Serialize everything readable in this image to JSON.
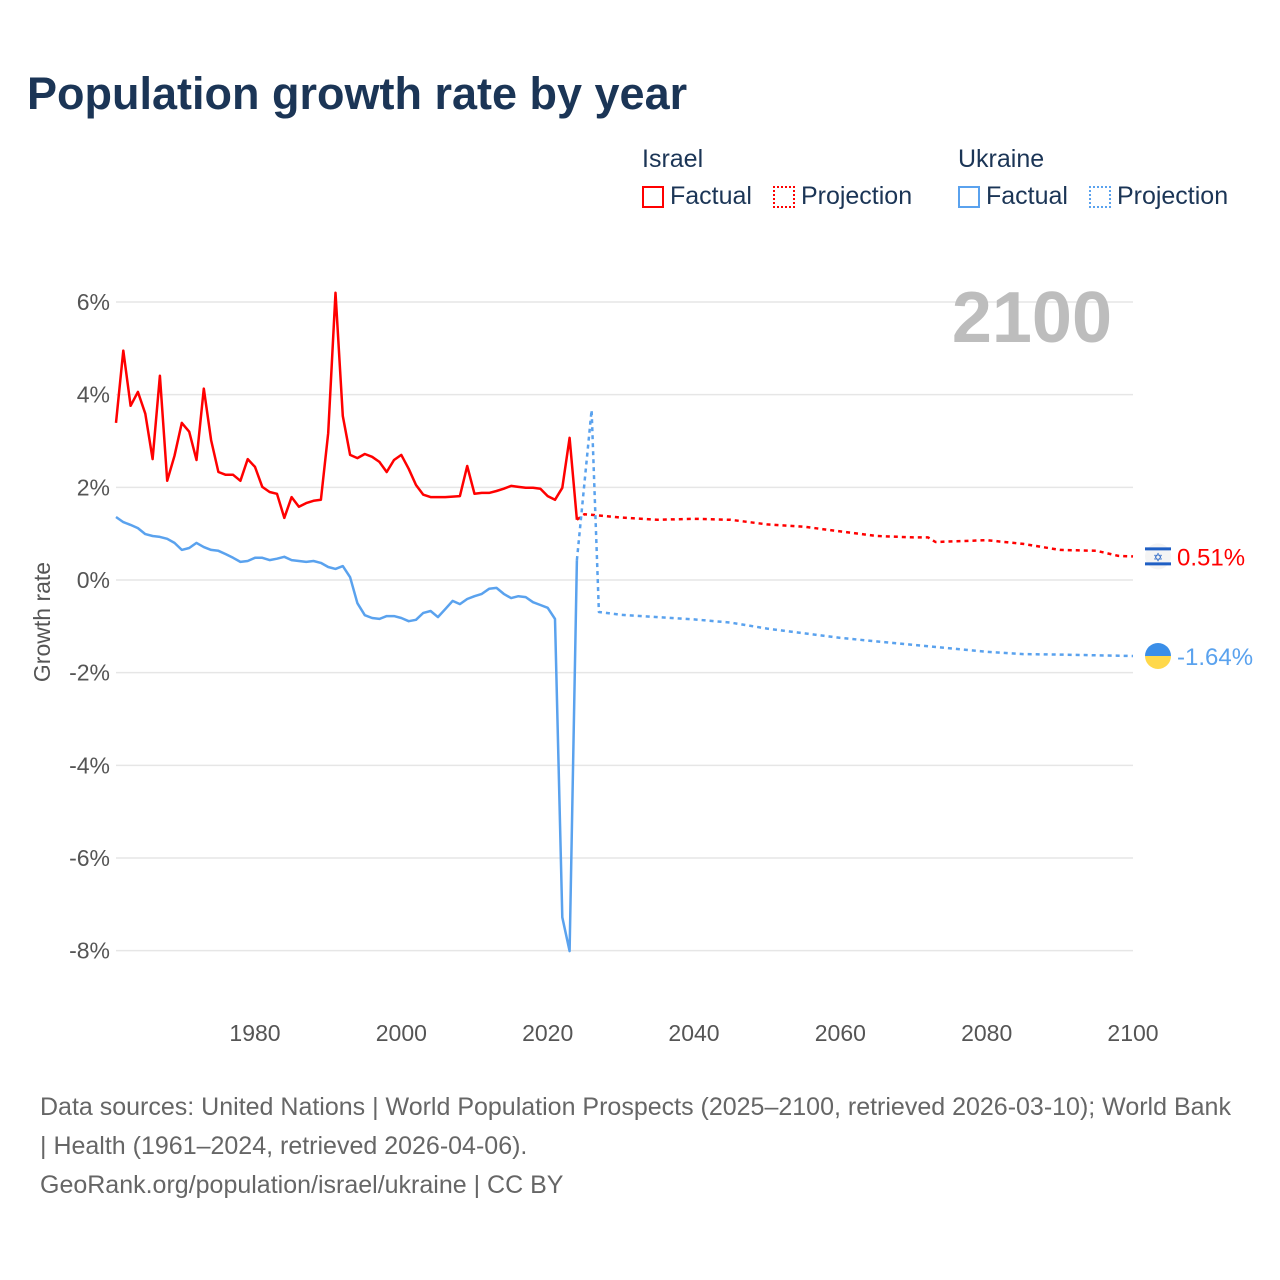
{
  "chart_data": {
    "type": "line",
    "title": "Population growth rate by year",
    "xlabel": "",
    "ylabel": "Growth rate",
    "xlim": [
      1961,
      2100
    ],
    "ylim": [
      -8,
      6
    ],
    "x_ticks": [
      "1980",
      "2000",
      "2020",
      "2040",
      "2060",
      "2080",
      "2100"
    ],
    "y_ticks": [
      "6%",
      "4%",
      "2%",
      "0%",
      "-2%",
      "-4%",
      "-6%",
      "-8%"
    ],
    "y_tick_values": [
      6,
      4,
      2,
      0,
      -2,
      -4,
      -6,
      -8
    ],
    "x_tick_values": [
      1980,
      2000,
      2020,
      2040,
      2060,
      2080,
      2100
    ],
    "grid": true,
    "year_label": "2100",
    "legend": {
      "placement": "top-right",
      "groups": [
        {
          "name": "Israel",
          "factual": "Factual",
          "projection": "Projection",
          "color": "#ff0000"
        },
        {
          "name": "Ukraine",
          "factual": "Factual",
          "projection": "Projection",
          "color": "#5aa2ee"
        }
      ]
    },
    "series": [
      {
        "name": "Israel",
        "kind": "Factual",
        "color": "#ff0000",
        "x": [
          1961,
          1962,
          1963,
          1964,
          1965,
          1966,
          1967,
          1968,
          1969,
          1970,
          1971,
          1972,
          1973,
          1974,
          1975,
          1976,
          1977,
          1978,
          1979,
          1980,
          1981,
          1982,
          1983,
          1984,
          1985,
          1986,
          1987,
          1988,
          1989,
          1990,
          1991,
          1992,
          1993,
          1994,
          1995,
          1996,
          1997,
          1998,
          1999,
          2000,
          2001,
          2002,
          2003,
          2004,
          2005,
          2006,
          2007,
          2008,
          2009,
          2010,
          2011,
          2012,
          2013,
          2014,
          2015,
          2016,
          2017,
          2018,
          2019,
          2020,
          2021,
          2022,
          2023,
          2024
        ],
        "y": [
          3.39,
          4.95,
          3.76,
          4.06,
          3.59,
          2.61,
          4.41,
          2.14,
          2.68,
          3.39,
          3.2,
          2.59,
          4.13,
          3.02,
          2.33,
          2.27,
          2.27,
          2.14,
          2.61,
          2.44,
          2.01,
          1.9,
          1.86,
          1.34,
          1.79,
          1.58,
          1.66,
          1.71,
          1.73,
          3.17,
          6.2,
          3.54,
          2.7,
          2.63,
          2.72,
          2.66,
          2.55,
          2.33,
          2.59,
          2.7,
          2.4,
          2.05,
          1.84,
          1.79,
          1.79,
          1.79,
          1.8,
          1.81,
          2.46,
          1.86,
          1.88,
          1.88,
          1.92,
          1.97,
          2.03,
          2.01,
          1.99,
          1.99,
          1.97,
          1.81,
          1.73,
          1.99,
          3.07,
          1.3
        ]
      },
      {
        "name": "Israel",
        "kind": "Projection",
        "color": "#ff0000",
        "x": [
          2024,
          2025,
          2030,
          2035,
          2040,
          2045,
          2050,
          2055,
          2060,
          2065,
          2070,
          2072,
          2073,
          2080,
          2085,
          2090,
          2095,
          2098,
          2100
        ],
        "y": [
          1.3,
          1.42,
          1.35,
          1.3,
          1.32,
          1.3,
          1.2,
          1.15,
          1.05,
          0.95,
          0.92,
          0.92,
          0.82,
          0.86,
          0.78,
          0.65,
          0.63,
          0.52,
          0.51
        ]
      },
      {
        "name": "Ukraine",
        "kind": "Factual",
        "color": "#5aa2ee",
        "x": [
          1961,
          1962,
          1963,
          1964,
          1965,
          1966,
          1967,
          1968,
          1969,
          1970,
          1971,
          1972,
          1973,
          1974,
          1975,
          1976,
          1977,
          1978,
          1979,
          1980,
          1981,
          1982,
          1983,
          1984,
          1985,
          1986,
          1987,
          1988,
          1989,
          1990,
          1991,
          1992,
          1993,
          1994,
          1995,
          1996,
          1997,
          1998,
          1999,
          2000,
          2001,
          2002,
          2003,
          2004,
          2005,
          2006,
          2007,
          2008,
          2009,
          2010,
          2011,
          2012,
          2013,
          2014,
          2015,
          2016,
          2017,
          2018,
          2019,
          2020,
          2021,
          2022,
          2023,
          2024
        ],
        "y": [
          1.36,
          1.25,
          1.19,
          1.12,
          0.99,
          0.95,
          0.93,
          0.89,
          0.8,
          0.65,
          0.69,
          0.8,
          0.71,
          0.65,
          0.63,
          0.56,
          0.48,
          0.39,
          0.41,
          0.48,
          0.48,
          0.43,
          0.46,
          0.5,
          0.43,
          0.41,
          0.39,
          0.41,
          0.37,
          0.28,
          0.24,
          0.3,
          0.06,
          -0.5,
          -0.76,
          -0.82,
          -0.84,
          -0.78,
          -0.78,
          -0.82,
          -0.89,
          -0.86,
          -0.71,
          -0.67,
          -0.8,
          -0.63,
          -0.45,
          -0.52,
          -0.41,
          -0.35,
          -0.3,
          -0.19,
          -0.17,
          -0.3,
          -0.39,
          -0.35,
          -0.37,
          -0.48,
          -0.54,
          -0.6,
          -0.84,
          -7.28,
          -8.01,
          0.43
        ]
      },
      {
        "name": "Ukraine",
        "kind": "Projection",
        "color": "#5aa2ee",
        "x": [
          2024,
          2026,
          2027,
          2030,
          2040,
          2045,
          2050,
          2060,
          2070,
          2080,
          2085,
          2090,
          2100
        ],
        "y": [
          0.43,
          3.67,
          -0.69,
          -0.75,
          -0.85,
          -0.92,
          -1.05,
          -1.25,
          -1.4,
          -1.55,
          -1.6,
          -1.61,
          -1.64
        ]
      }
    ],
    "end_labels": [
      {
        "country": "Israel",
        "text": "0.51%",
        "value": 0.51,
        "color": "#ff0000",
        "flag": "israel-flag"
      },
      {
        "country": "Ukraine",
        "text": "-1.64%",
        "value": -1.64,
        "color": "#5aa2ee",
        "flag": "ukraine-flag"
      }
    ]
  },
  "footer": {
    "sources": "Data sources: United Nations | World Population Prospects (2025–2100, retrieved 2026-03-10); World Bank | Health (1961–2024, retrieved 2026-04-06).",
    "link": "GeoRank.org/population/israel/ukraine | CC BY"
  }
}
